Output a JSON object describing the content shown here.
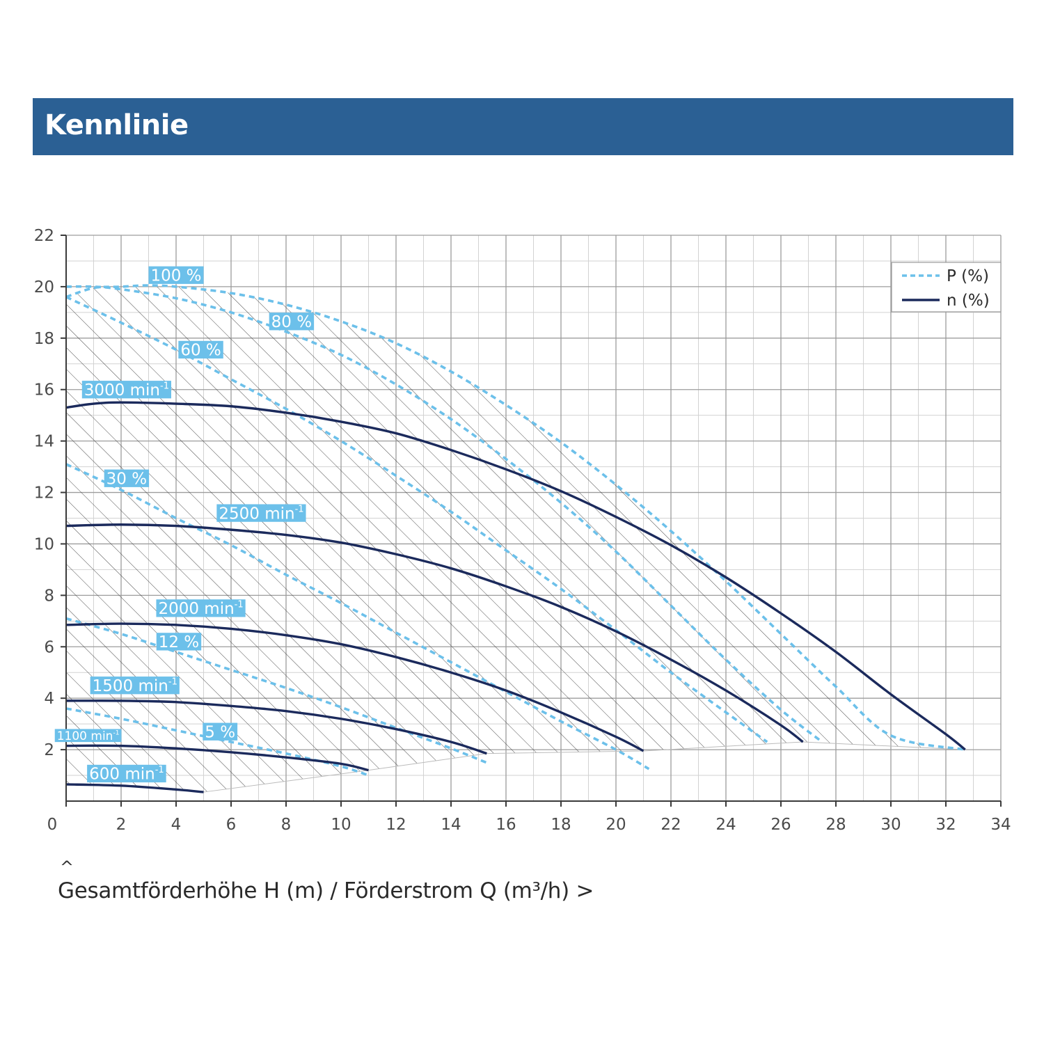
{
  "header": {
    "title": "Kennlinie"
  },
  "axis": {
    "caret_up": "^",
    "label": "Gesamtförderhöhe H (m) / Förderstrom Q (m³/h) >"
  },
  "chart_data": {
    "type": "line",
    "x_range": [
      0,
      34
    ],
    "y_range": [
      0,
      22
    ],
    "x_ticks": [
      "0",
      "2",
      "4",
      "6",
      "8",
      "10",
      "12",
      "14",
      "16",
      "18",
      "20",
      "22",
      "24",
      "26",
      "28",
      "30",
      "32",
      "34"
    ],
    "y_ticks": [
      "2",
      "4",
      "6",
      "8",
      "10",
      "12",
      "14",
      "16",
      "18",
      "20",
      "22"
    ],
    "grid": true,
    "legend": {
      "placement": "top-right",
      "entries": [
        {
          "label": "P (%)",
          "style": "dashed",
          "color": "#6cc0ea"
        },
        {
          "label": "n (%)",
          "style": "solid",
          "color": "#1b2a5c"
        }
      ]
    },
    "colors": {
      "header": "#2b6094",
      "speed_curve": "#1b2a5c",
      "power_curve": "#6cc0ea",
      "label_bg": "#6cc0ea"
    },
    "operating_range_hatched": true,
    "speed_curves": [
      {
        "label": "3000 min-1",
        "points": [
          [
            0,
            15.3
          ],
          [
            1,
            15.45
          ],
          [
            2,
            15.5
          ],
          [
            4,
            15.45
          ],
          [
            6,
            15.35
          ],
          [
            8,
            15.1
          ],
          [
            10,
            14.75
          ],
          [
            12,
            14.3
          ],
          [
            14,
            13.65
          ],
          [
            16,
            12.9
          ],
          [
            18,
            12.05
          ],
          [
            20,
            11.05
          ],
          [
            22,
            9.95
          ],
          [
            24,
            8.7
          ],
          [
            26,
            7.3
          ],
          [
            28,
            5.8
          ],
          [
            30,
            4.15
          ],
          [
            32,
            2.6
          ],
          [
            32.7,
            2.0
          ]
        ]
      },
      {
        "label": "2500 min-1",
        "points": [
          [
            0,
            10.7
          ],
          [
            2,
            10.75
          ],
          [
            4,
            10.7
          ],
          [
            6,
            10.55
          ],
          [
            8,
            10.35
          ],
          [
            10,
            10.05
          ],
          [
            12,
            9.6
          ],
          [
            14,
            9.05
          ],
          [
            16,
            8.35
          ],
          [
            18,
            7.55
          ],
          [
            20,
            6.6
          ],
          [
            22,
            5.5
          ],
          [
            24,
            4.3
          ],
          [
            26,
            2.95
          ],
          [
            26.8,
            2.3
          ]
        ]
      },
      {
        "label": "2000 min-1",
        "points": [
          [
            0,
            6.85
          ],
          [
            2,
            6.9
          ],
          [
            4,
            6.85
          ],
          [
            6,
            6.7
          ],
          [
            8,
            6.45
          ],
          [
            10,
            6.1
          ],
          [
            12,
            5.6
          ],
          [
            14,
            5.0
          ],
          [
            16,
            4.3
          ],
          [
            18,
            3.45
          ],
          [
            20,
            2.5
          ],
          [
            21.0,
            1.95
          ]
        ]
      },
      {
        "label": "1500 min-1",
        "points": [
          [
            0,
            3.9
          ],
          [
            2,
            3.9
          ],
          [
            4,
            3.85
          ],
          [
            6,
            3.7
          ],
          [
            8,
            3.5
          ],
          [
            10,
            3.2
          ],
          [
            12,
            2.8
          ],
          [
            14,
            2.3
          ],
          [
            15.3,
            1.85
          ]
        ]
      },
      {
        "label": "1100 min-1",
        "points": [
          [
            0,
            2.15
          ],
          [
            2,
            2.15
          ],
          [
            4,
            2.05
          ],
          [
            6,
            1.9
          ],
          [
            8,
            1.7
          ],
          [
            10,
            1.45
          ],
          [
            11.0,
            1.2
          ]
        ]
      },
      {
        "label": "600 min-1",
        "points": [
          [
            0,
            0.65
          ],
          [
            2,
            0.6
          ],
          [
            4,
            0.45
          ],
          [
            5.0,
            0.35
          ]
        ]
      }
    ],
    "power_curves": [
      {
        "label": "100 %",
        "points": [
          [
            0,
            19.6
          ],
          [
            1,
            19.95
          ],
          [
            2,
            20.0
          ],
          [
            3,
            20.05
          ],
          [
            4,
            20.0
          ],
          [
            6,
            19.75
          ],
          [
            8,
            19.3
          ],
          [
            10,
            18.65
          ],
          [
            12,
            17.8
          ],
          [
            14,
            16.7
          ],
          [
            16,
            15.4
          ],
          [
            18,
            13.95
          ],
          [
            20,
            12.3
          ],
          [
            22,
            10.5
          ],
          [
            24,
            8.55
          ],
          [
            26,
            6.5
          ],
          [
            28,
            4.45
          ],
          [
            30,
            2.55
          ],
          [
            32.7,
            2.0
          ]
        ]
      },
      {
        "label": "80 %",
        "points": [
          [
            0,
            20.0
          ],
          [
            1,
            20.0
          ],
          [
            2,
            19.9
          ],
          [
            4,
            19.55
          ],
          [
            6,
            19.0
          ],
          [
            8,
            18.25
          ],
          [
            10,
            17.35
          ],
          [
            12,
            16.2
          ],
          [
            14,
            14.85
          ],
          [
            16,
            13.3
          ],
          [
            18,
            11.6
          ],
          [
            20,
            9.7
          ],
          [
            22,
            7.6
          ],
          [
            24,
            5.5
          ],
          [
            26,
            3.55
          ],
          [
            27.5,
            2.3
          ]
        ]
      },
      {
        "label": "60 %",
        "points": [
          [
            0,
            19.6
          ],
          [
            2,
            18.6
          ],
          [
            4,
            17.55
          ],
          [
            6,
            16.4
          ],
          [
            8,
            15.25
          ],
          [
            10,
            14.0
          ],
          [
            12,
            12.65
          ],
          [
            14,
            11.25
          ],
          [
            16,
            9.75
          ],
          [
            18,
            8.25
          ],
          [
            20,
            6.65
          ],
          [
            22,
            5.0
          ],
          [
            24,
            3.45
          ],
          [
            25.5,
            2.3
          ]
        ]
      },
      {
        "label": "30 %",
        "points": [
          [
            0,
            13.1
          ],
          [
            2,
            12.1
          ],
          [
            4,
            11.0
          ],
          [
            6,
            9.95
          ],
          [
            8,
            8.8
          ],
          [
            10,
            7.7
          ],
          [
            12,
            6.55
          ],
          [
            14,
            5.4
          ],
          [
            16,
            4.25
          ],
          [
            18,
            3.1
          ],
          [
            20,
            2.0
          ],
          [
            21.2,
            1.25
          ]
        ]
      },
      {
        "label": "12 %",
        "points": [
          [
            0,
            7.1
          ],
          [
            2,
            6.5
          ],
          [
            4,
            5.8
          ],
          [
            6,
            5.1
          ],
          [
            8,
            4.4
          ],
          [
            10,
            3.65
          ],
          [
            12,
            2.85
          ],
          [
            14,
            2.05
          ],
          [
            15.4,
            1.45
          ]
        ]
      },
      {
        "label": "5 %",
        "points": [
          [
            0,
            3.6
          ],
          [
            2,
            3.2
          ],
          [
            4,
            2.75
          ],
          [
            6,
            2.3
          ],
          [
            8,
            1.85
          ],
          [
            10,
            1.35
          ],
          [
            11.0,
            1.0
          ]
        ]
      }
    ],
    "annotations": [
      {
        "text": "100 %",
        "x": 4.0,
        "y": 20.45,
        "size": "n"
      },
      {
        "text": "80 %",
        "x": 8.2,
        "y": 18.65,
        "size": "n"
      },
      {
        "text": "60 %",
        "x": 4.9,
        "y": 17.55,
        "size": "n"
      },
      {
        "text": "3000 min",
        "sup": "-1",
        "x": 2.2,
        "y": 16.0,
        "size": "n"
      },
      {
        "text": "30 %",
        "x": 2.2,
        "y": 12.55,
        "size": "n"
      },
      {
        "text": "2500 min",
        "sup": "-1",
        "x": 7.1,
        "y": 11.2,
        "size": "n"
      },
      {
        "text": "2000 min",
        "sup": "-1",
        "x": 4.9,
        "y": 7.5,
        "size": "n"
      },
      {
        "text": "12 %",
        "x": 4.1,
        "y": 6.2,
        "size": "n"
      },
      {
        "text": "1500 min",
        "sup": "-1",
        "x": 2.5,
        "y": 4.5,
        "size": "n"
      },
      {
        "text": "5 %",
        "x": 5.6,
        "y": 2.7,
        "size": "n"
      },
      {
        "text": "1100 min",
        "sup": "-1",
        "x": 0.8,
        "y": 2.55,
        "size": "s"
      },
      {
        "text": "600 min",
        "sup": "-1",
        "x": 2.2,
        "y": 1.07,
        "size": "n"
      }
    ]
  }
}
